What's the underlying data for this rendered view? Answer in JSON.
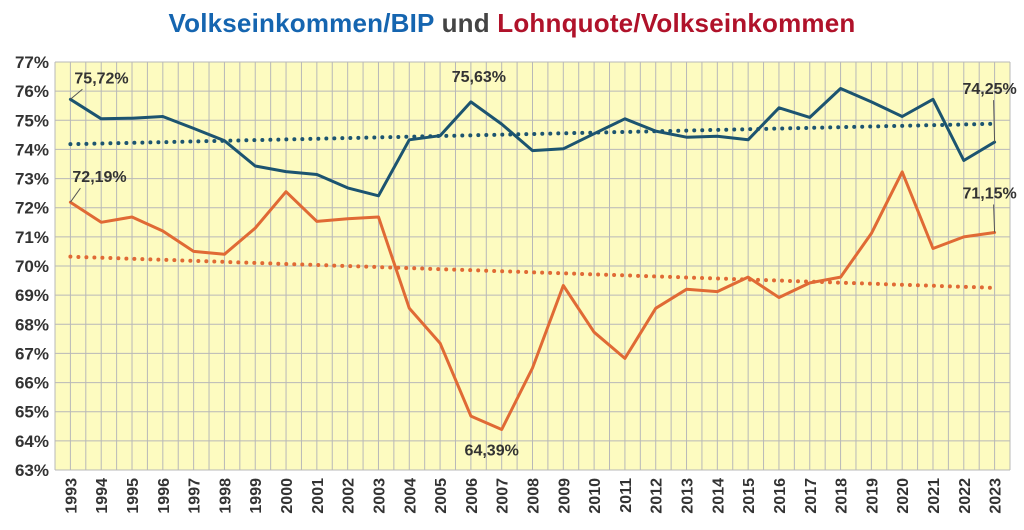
{
  "title": {
    "part1": "Volkseinkommen/BIP",
    "part2": "und",
    "part3": "Lohnquote/Volkseinkommen",
    "color1": "#1565b0",
    "color2": "#444444",
    "color3": "#b0122a"
  },
  "chart_data": {
    "type": "line",
    "title": "Volkseinkommen/BIP und Lohnquote/Volkseinkommen",
    "xlabel": "",
    "ylabel": "",
    "ylim": [
      63,
      77
    ],
    "y_ticks": [
      {
        "value": 63,
        "label": "63%"
      },
      {
        "value": 64,
        "label": "64%"
      },
      {
        "value": 65,
        "label": "65%"
      },
      {
        "value": 66,
        "label": "66%"
      },
      {
        "value": 67,
        "label": "67%"
      },
      {
        "value": 68,
        "label": "68%"
      },
      {
        "value": 69,
        "label": "69%"
      },
      {
        "value": 70,
        "label": "70%"
      },
      {
        "value": 71,
        "label": "71%"
      },
      {
        "value": 72,
        "label": "72%"
      },
      {
        "value": 73,
        "label": "73%"
      },
      {
        "value": 74,
        "label": "74%"
      },
      {
        "value": 75,
        "label": "75%"
      },
      {
        "value": 76,
        "label": "76%"
      },
      {
        "value": 77,
        "label": "77%"
      }
    ],
    "categories": [
      "1993",
      "1994",
      "1995",
      "1996",
      "1997",
      "1998",
      "1999",
      "2000",
      "2001",
      "2002",
      "2003",
      "2004",
      "2005",
      "2006",
      "2007",
      "2008",
      "2009",
      "2010",
      "2011",
      "2012",
      "2013",
      "2014",
      "2015",
      "2016",
      "2017",
      "2018",
      "2019",
      "2020",
      "2021",
      "2022",
      "2023"
    ],
    "grid": true,
    "plot_background": "#fdfbc0",
    "grid_color": "#b8b8b8",
    "series": [
      {
        "color": "#1c5470",
        "values": [
          75.72,
          75.05,
          75.07,
          75.13,
          74.72,
          74.3,
          73.43,
          73.24,
          73.14,
          72.68,
          72.41,
          74.33,
          74.47,
          75.63,
          74.87,
          73.96,
          74.02,
          74.54,
          75.05,
          74.63,
          74.42,
          74.45,
          74.33,
          75.43,
          75.1,
          76.09,
          75.63,
          75.13,
          75.72,
          73.62,
          74.25
        ]
      },
      {
        "color": "#e06a35",
        "values": [
          72.19,
          71.5,
          71.68,
          71.2,
          70.5,
          70.4,
          71.3,
          72.55,
          71.53,
          71.62,
          71.68,
          68.55,
          67.35,
          64.85,
          64.39,
          66.5,
          69.33,
          67.73,
          66.83,
          68.55,
          69.2,
          69.12,
          69.62,
          68.92,
          69.42,
          69.62,
          71.12,
          73.23,
          70.6,
          71.0,
          71.15
        ]
      }
    ],
    "trendlines": [
      {
        "color": "#1c5470",
        "style": "dotted",
        "from": {
          "x": "1993",
          "y": 74.18
        },
        "to": {
          "x": "2023",
          "y": 74.88
        }
      },
      {
        "color": "#e06a35",
        "style": "dotted",
        "from": {
          "x": "1993",
          "y": 70.32
        },
        "to": {
          "x": "2023",
          "y": 69.25
        }
      }
    ],
    "annotations": [
      {
        "text": "75,72%",
        "series": 0,
        "index": 0,
        "anchor": "start",
        "dx": 4,
        "dy": -16,
        "leader": true
      },
      {
        "text": "75,63%",
        "series": 0,
        "index": 13,
        "anchor": "middle",
        "dx": 8,
        "dy": -20,
        "leader": false
      },
      {
        "text": "74,25%",
        "series": 0,
        "index": 30,
        "anchor": "middle",
        "dx": -5,
        "dy": -48,
        "leader": true
      },
      {
        "text": "72,19%",
        "series": 1,
        "index": 0,
        "anchor": "start",
        "dx": 2,
        "dy": -20,
        "leader": true
      },
      {
        "text": "71,15%",
        "series": 1,
        "index": 30,
        "anchor": "middle",
        "dx": -5,
        "dy": -34,
        "leader": true
      },
      {
        "text": "64,39%",
        "series": 1,
        "index": 14,
        "anchor": "middle",
        "dx": -10,
        "dy": 26,
        "leader": false
      }
    ]
  }
}
